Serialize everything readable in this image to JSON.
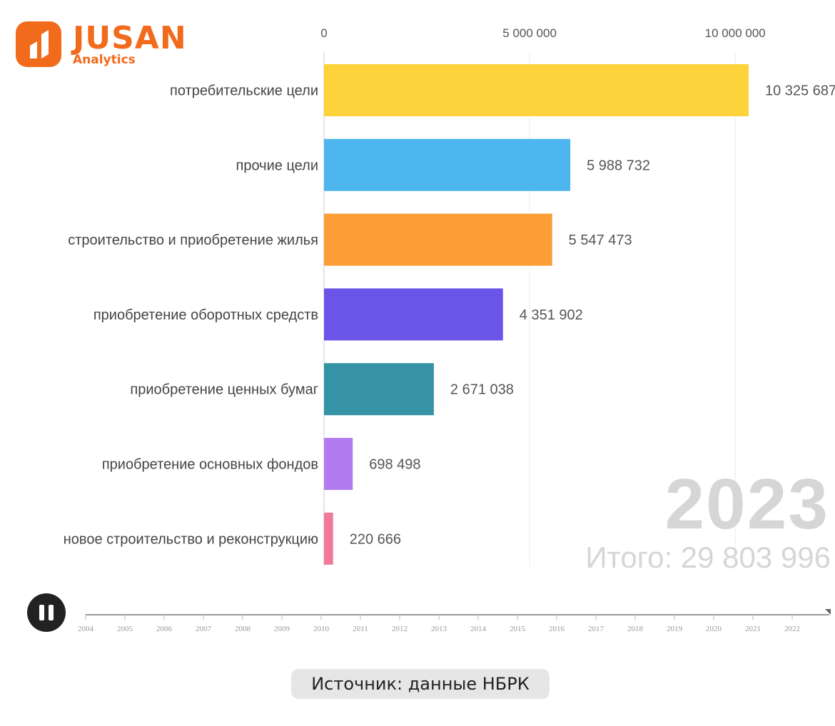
{
  "brand": {
    "name": "JUSAN",
    "sub": "Analytics",
    "color": "#f26a1b"
  },
  "chart_data": {
    "type": "bar",
    "orientation": "horizontal",
    "categories": [
      "потребительские цели",
      "прочие цели",
      "строительство и приобретение жилья",
      "приобретение оборотных средств",
      "приобретение ценных бумаг",
      "приобретение основных фондов",
      "новое строительство и реконструкцию"
    ],
    "values": [
      10325687,
      5988732,
      5547473,
      4351902,
      2671038,
      698498,
      220666
    ],
    "value_labels": [
      "10 325 687",
      "5 988 732",
      "5 547 473",
      "4 351 902",
      "2 671 038",
      "698 498",
      "220 666"
    ],
    "colors": [
      "#fdd23a",
      "#4db6ee",
      "#fc9e35",
      "#6b55e8",
      "#3593a5",
      "#b27cf0",
      "#f17a9b"
    ],
    "x_ticks": [
      0,
      5000000,
      10000000
    ],
    "x_tick_labels": [
      "0",
      "5 000 000",
      "10 000 000"
    ],
    "xlim": [
      0,
      10325687
    ],
    "xaxis_position": "top",
    "grid": true,
    "year": "2023",
    "total_label": "Итого: 29 803 996"
  },
  "timeline": {
    "years": [
      "2004",
      "2005",
      "2006",
      "2007",
      "2008",
      "2009",
      "2010",
      "2011",
      "2012",
      "2013",
      "2014",
      "2015",
      "2016",
      "2017",
      "2018",
      "2019",
      "2020",
      "2021",
      "2022"
    ],
    "progress": 1.0
  },
  "controls": {
    "pause_icon": "pause-icon"
  },
  "source": "Источник: данные НБРК"
}
